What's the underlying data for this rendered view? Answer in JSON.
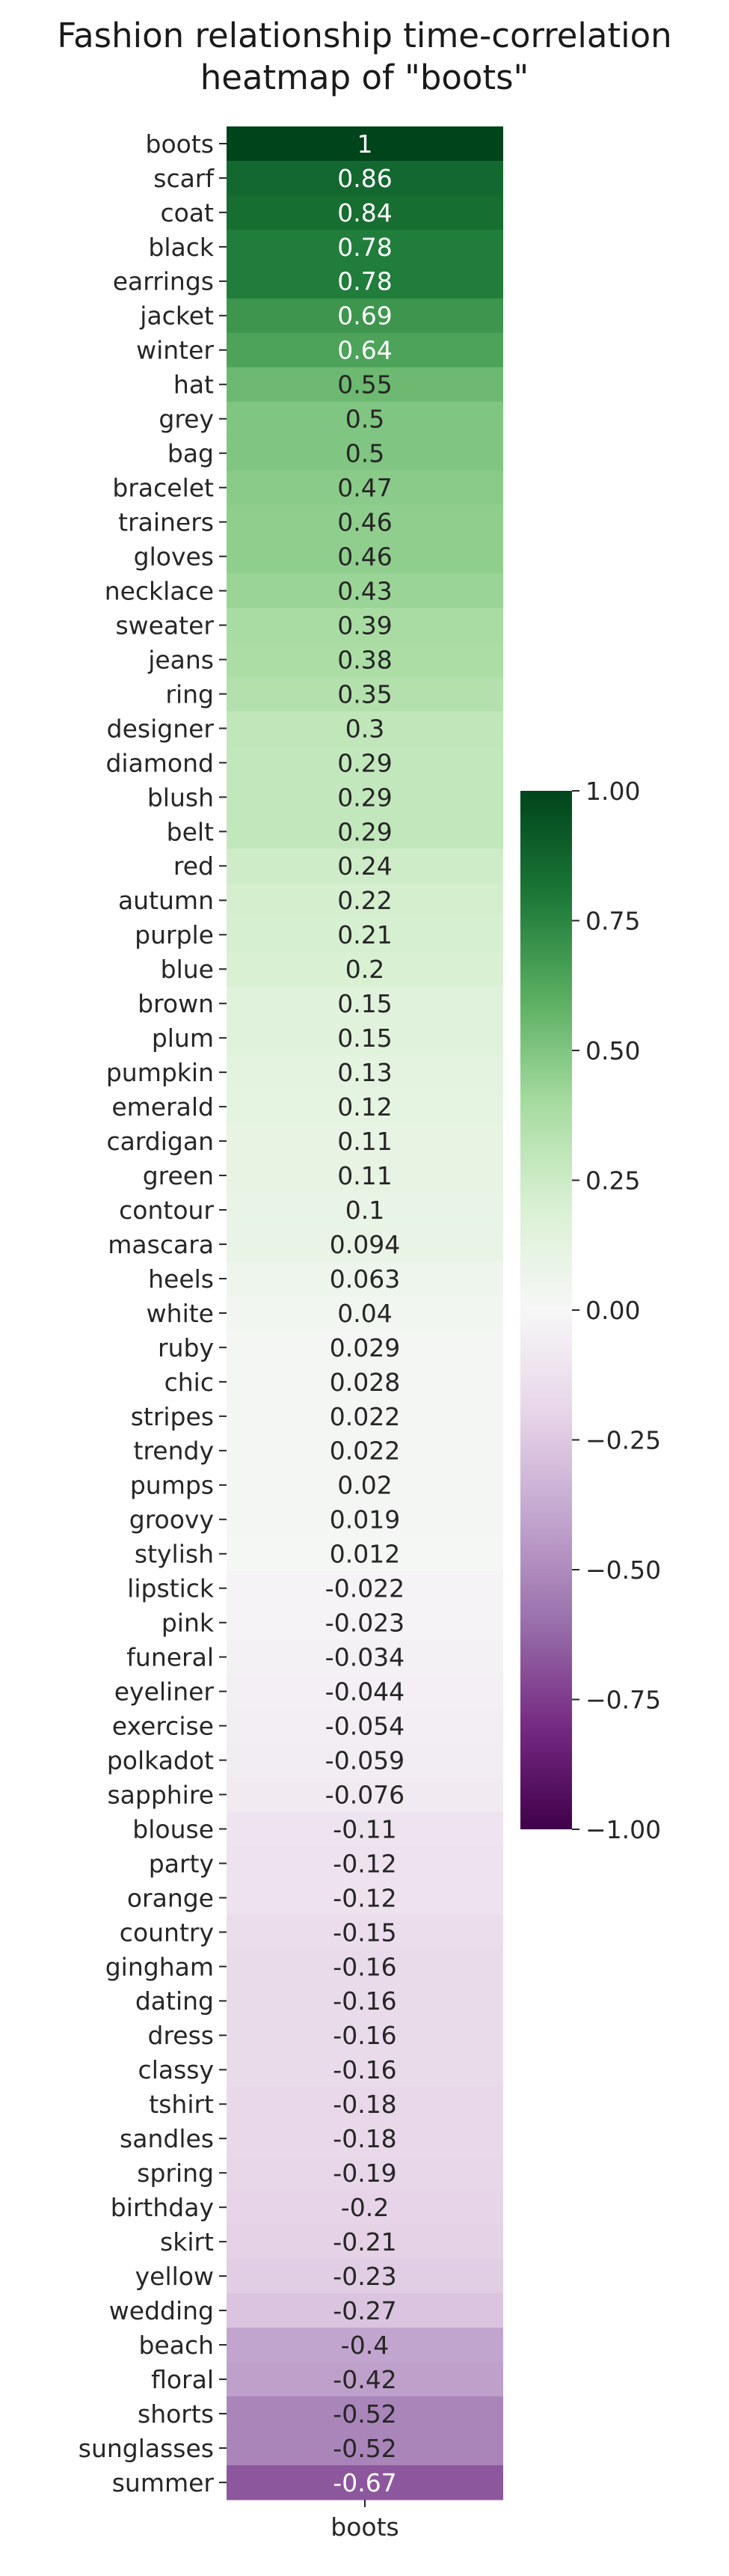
{
  "chart_data": {
    "type": "heatmap",
    "title": "Fashion relationship time-correlation\nheatmap of \"boots\"",
    "xlabel": "",
    "ylabel": "",
    "columns": [
      "boots"
    ],
    "rows": [
      "boots",
      "scarf",
      "coat",
      "black",
      "earrings",
      "jacket",
      "winter",
      "hat",
      "grey",
      "bag",
      "bracelet",
      "trainers",
      "gloves",
      "necklace",
      "sweater",
      "jeans",
      "ring",
      "designer",
      "diamond",
      "blush",
      "belt",
      "red",
      "autumn",
      "purple",
      "blue",
      "brown",
      "plum",
      "pumpkin",
      "emerald",
      "cardigan",
      "green",
      "contour",
      "mascara",
      "heels",
      "white",
      "ruby",
      "chic",
      "stripes",
      "trendy",
      "pumps",
      "groovy",
      "stylish",
      "lipstick",
      "pink",
      "funeral",
      "eyeliner",
      "exercise",
      "polkadot",
      "sapphire",
      "blouse",
      "party",
      "orange",
      "country",
      "gingham",
      "dating",
      "dress",
      "classy",
      "tshirt",
      "sandles",
      "spring",
      "birthday",
      "skirt",
      "yellow",
      "wedding",
      "beach",
      "floral",
      "shorts",
      "sunglasses",
      "summer"
    ],
    "values": [
      1,
      0.86,
      0.84,
      0.78,
      0.78,
      0.69,
      0.64,
      0.55,
      0.5,
      0.5,
      0.47,
      0.46,
      0.46,
      0.43,
      0.39,
      0.38,
      0.35,
      0.3,
      0.29,
      0.29,
      0.29,
      0.24,
      0.22,
      0.21,
      0.2,
      0.15,
      0.15,
      0.13,
      0.12,
      0.11,
      0.11,
      0.1,
      0.094,
      0.063,
      0.04,
      0.029,
      0.028,
      0.022,
      0.022,
      0.02,
      0.019,
      0.012,
      -0.022,
      -0.023,
      -0.034,
      -0.044,
      -0.054,
      -0.059,
      -0.076,
      -0.11,
      -0.12,
      -0.12,
      -0.15,
      -0.16,
      -0.16,
      -0.16,
      -0.16,
      -0.18,
      -0.18,
      -0.19,
      -0.2,
      -0.21,
      -0.23,
      -0.27,
      -0.4,
      -0.42,
      -0.52,
      -0.52,
      -0.67
    ],
    "value_labels": [
      "1",
      "0.86",
      "0.84",
      "0.78",
      "0.78",
      "0.69",
      "0.64",
      "0.55",
      "0.5",
      "0.5",
      "0.47",
      "0.46",
      "0.46",
      "0.43",
      "0.39",
      "0.38",
      "0.35",
      "0.3",
      "0.29",
      "0.29",
      "0.29",
      "0.24",
      "0.22",
      "0.21",
      "0.2",
      "0.15",
      "0.15",
      "0.13",
      "0.12",
      "0.11",
      "0.11",
      "0.1",
      "0.094",
      "0.063",
      "0.04",
      "0.029",
      "0.028",
      "0.022",
      "0.022",
      "0.02",
      "0.019",
      "0.012",
      "-0.022",
      "-0.023",
      "-0.034",
      "-0.044",
      "-0.054",
      "-0.059",
      "-0.076",
      "-0.11",
      "-0.12",
      "-0.12",
      "-0.15",
      "-0.16",
      "-0.16",
      "-0.16",
      "-0.16",
      "-0.18",
      "-0.18",
      "-0.19",
      "-0.2",
      "-0.21",
      "-0.23",
      "-0.27",
      "-0.4",
      "-0.42",
      "-0.52",
      "-0.52",
      "-0.67"
    ],
    "colormap": "PRGn",
    "vmin": -1,
    "vmax": 1,
    "colorbar_ticks": [
      1.0,
      0.75,
      0.5,
      0.25,
      0.0,
      -0.25,
      -0.5,
      -0.75,
      -1.0
    ],
    "colorbar_tick_labels": [
      "1.00",
      "0.75",
      "0.50",
      "0.25",
      "0.00",
      "−0.25",
      "−0.50",
      "−0.75",
      "−1.00"
    ],
    "grid": false,
    "legend": "colorbar-right"
  }
}
